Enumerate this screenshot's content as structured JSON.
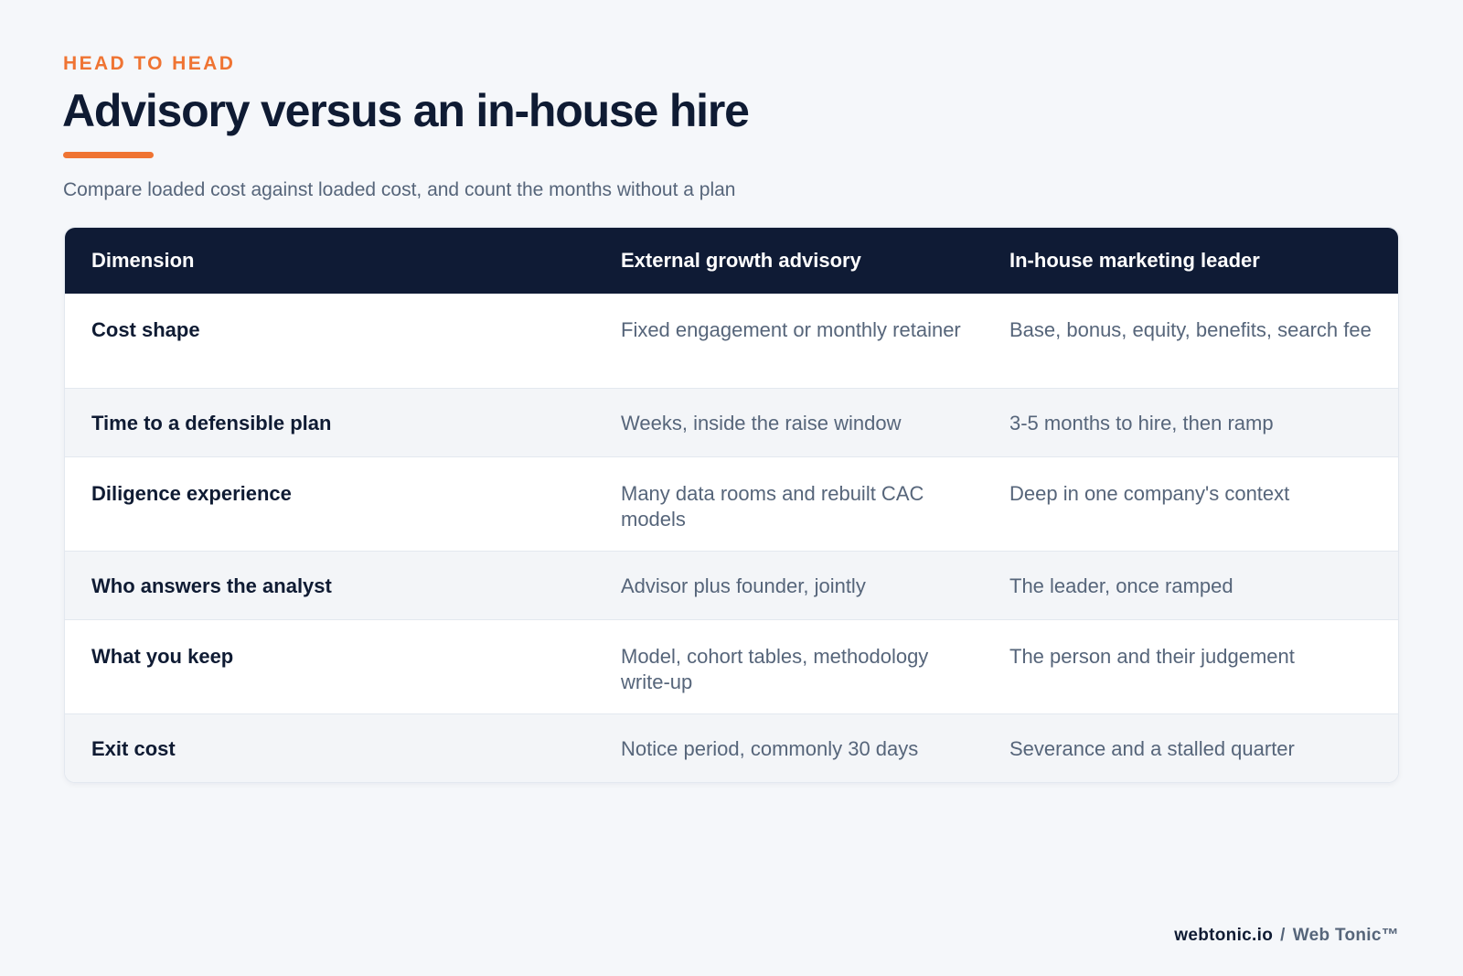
{
  "header": {
    "eyebrow": "HEAD TO HEAD",
    "title": "Advisory versus an in-house hire",
    "subtitle": "Compare loaded cost against loaded cost, and count the months without a plan"
  },
  "table": {
    "columns": [
      "Dimension",
      "External growth advisory",
      "In-house marketing leader"
    ],
    "rows": [
      {
        "dimension": "Cost shape",
        "advisory": "Fixed engagement or monthly retainer",
        "inhouse": "Base, bonus, equity, benefits, search fee"
      },
      {
        "dimension": "Time to a defensible plan",
        "advisory": "Weeks, inside the raise window",
        "inhouse": "3-5 months to hire, then ramp"
      },
      {
        "dimension": "Diligence experience",
        "advisory": "Many data rooms and rebuilt CAC models",
        "inhouse": "Deep in one company's context"
      },
      {
        "dimension": "Who answers the analyst",
        "advisory": "Advisor plus founder, jointly",
        "inhouse": "The leader, once ramped"
      },
      {
        "dimension": "What you keep",
        "advisory": "Model, cohort tables, methodology write-up",
        "inhouse": "The person and their judgement"
      },
      {
        "dimension": "Exit cost",
        "advisory": "Notice period, commonly 30 days",
        "inhouse": "Severance and a stalled quarter"
      }
    ]
  },
  "footer": {
    "site": "webtonic.io",
    "separator": "/",
    "brand": "Web Tonic™"
  }
}
